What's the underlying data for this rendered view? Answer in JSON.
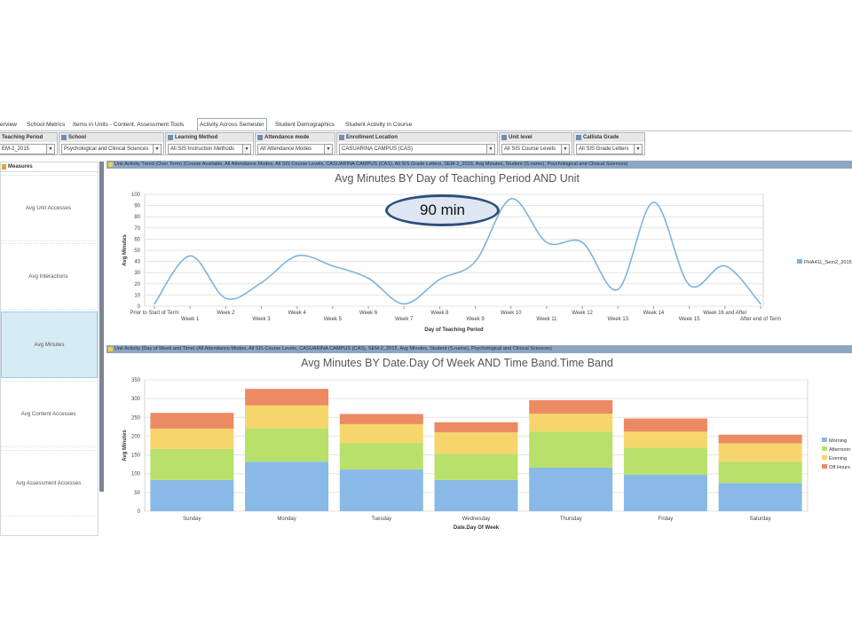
{
  "tabs": [
    {
      "label": "erview",
      "active": false
    },
    {
      "label": "School Metrics",
      "active": false
    },
    {
      "label": "Items in Units - Content, Assessment Tools",
      "active": false
    },
    {
      "label": "Activity Across Semester",
      "active": true
    },
    {
      "label": "Student Demographics",
      "active": false
    },
    {
      "label": "Student Activity in Course",
      "active": false
    }
  ],
  "filters": [
    {
      "label": "Teaching Period",
      "value": "EM-2_2015"
    },
    {
      "label": "School",
      "value": "Psychological and Clinical Sciences"
    },
    {
      "label": "Learning Method",
      "value": "All SIS Instruction Methods"
    },
    {
      "label": "Attendance mode",
      "value": "All Attendance Modes"
    },
    {
      "label": "Enrollment Location",
      "value": "CASUARINA CAMPUS (CAS)"
    },
    {
      "label": "Unit level",
      "value": "All SIS Course Levels"
    },
    {
      "label": "Callista Grade",
      "value": "All SIS Grade Letters"
    }
  ],
  "measures": {
    "title": "Measures",
    "items": [
      "Avg Unit Accesses",
      "Avg Interactions",
      "Avg Minutes",
      "Avg Content Accesses",
      "Avg Assessment Accesses"
    ],
    "active_index": 2
  },
  "panel1": {
    "header": "Unit Activity Trend (Over Term) (Course Available, All Attendance Modes, All SIS Course Levels, CASUARINA CAMPUS (CAS), All SIS Grade Letters, SEM-2_2015, Avg Minutes, Student (S.name), Psychological and Clinical Sciences)"
  },
  "panel2": {
    "header": "Unit Activity (Day of Week and Time) (All Attendance Modes, All SIS Course Levels, CASUARINA CAMPUS (CAS), SEM-2_2015, Avg Minutes, Student (S.name), Psychological and Clinical Sciences)"
  },
  "callout": {
    "text": "90 min"
  },
  "chart_data": [
    {
      "type": "line",
      "title": "Avg Minutes BY Day of Teaching Period AND Unit",
      "xlabel": "Day of Teaching Period",
      "ylabel": "Avg Minutes",
      "ylim": [
        0,
        100
      ],
      "yticks": [
        0,
        10,
        20,
        30,
        40,
        50,
        60,
        70,
        80,
        90,
        100
      ],
      "grid": true,
      "legend": "right",
      "categories": [
        "Prior to Start of Term",
        "Week 1",
        "Week 2",
        "Week 3",
        "Week 4",
        "Week 5",
        "Week 6",
        "Week 7",
        "Week 8",
        "Week 9",
        "Week 10",
        "Week 11",
        "Week 12",
        "Week 13",
        "Week 14",
        "Week 15",
        "Week 16 and After",
        "After end of Term"
      ],
      "series": [
        {
          "name": "PHA411_Sem2_2015",
          "color": "#7fb3dc",
          "values": [
            2,
            45,
            7,
            21,
            45,
            36,
            25,
            2,
            24,
            40,
            96,
            57,
            57,
            15,
            93,
            19,
            36,
            2
          ]
        }
      ]
    },
    {
      "type": "bar",
      "stacked": true,
      "title": "Avg Minutes BY Date.Day Of Week AND Time Band.Time Band",
      "xlabel": "Date.Day Of Week",
      "ylabel": "Avg Minutes",
      "ylim": [
        0,
        350
      ],
      "yticks": [
        0,
        50,
        100,
        150,
        200,
        250,
        300,
        350
      ],
      "grid": true,
      "legend": "right",
      "categories": [
        "Sunday",
        "Monday",
        "Tuesday",
        "Wednesday",
        "Thursday",
        "Friday",
        "Saturday"
      ],
      "series": [
        {
          "name": "Morning",
          "color": "#89b9e6",
          "values": [
            83,
            132,
            111,
            83,
            116,
            97,
            75
          ]
        },
        {
          "name": "Afternoon",
          "color": "#b8e06b",
          "values": [
            83,
            89,
            70,
            70,
            96,
            72,
            57
          ]
        },
        {
          "name": "Evening",
          "color": "#f6d66c",
          "values": [
            54,
            61,
            51,
            57,
            48,
            43,
            49
          ]
        },
        {
          "name": "Off Hours",
          "color": "#ec8a63",
          "values": [
            42,
            44,
            27,
            27,
            36,
            35,
            23
          ]
        }
      ]
    }
  ]
}
